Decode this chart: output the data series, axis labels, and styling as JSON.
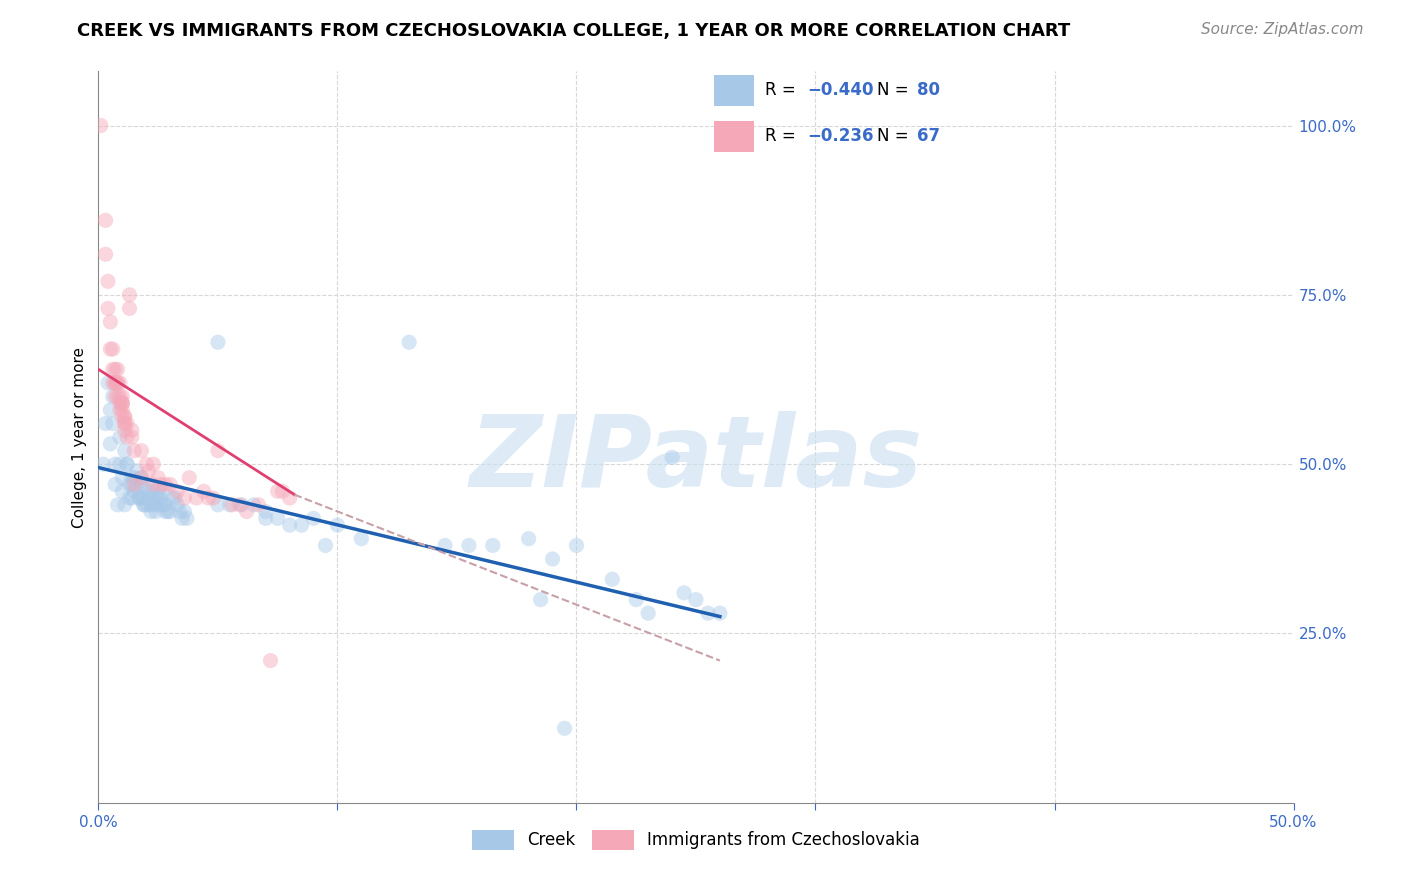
{
  "title": "CREEK VS IMMIGRANTS FROM CZECHOSLOVAKIA COLLEGE, 1 YEAR OR MORE CORRELATION CHART",
  "source": "Source: ZipAtlas.com",
  "ylabel": "College, 1 year or more",
  "xlim": [
    0.0,
    0.5
  ],
  "ylim": [
    0.0,
    1.08
  ],
  "xtick_positions": [
    0.0,
    0.1,
    0.2,
    0.3,
    0.4,
    0.5
  ],
  "xtick_labels": [
    "0.0%",
    "",
    "",
    "",
    "",
    "50.0%"
  ],
  "yticks_right": [
    0.25,
    0.5,
    0.75,
    1.0
  ],
  "ytick_labels_right": [
    "25.0%",
    "50.0%",
    "75.0%",
    "100.0%"
  ],
  "blue_color": "#a8c8e8",
  "pink_color": "#f4a8b8",
  "blue_line_color": "#2060b0",
  "pink_line_color": "#e04070",
  "dashed_line_color": "#c8a0a8",
  "legend_label_blue": "Creek",
  "legend_label_pink": "Immigrants from Czechoslovakia",
  "watermark": "ZIPatlas",
  "blue_scatter": [
    [
      0.002,
      0.5
    ],
    [
      0.003,
      0.56
    ],
    [
      0.004,
      0.62
    ],
    [
      0.005,
      0.58
    ],
    [
      0.005,
      0.53
    ],
    [
      0.006,
      0.6
    ],
    [
      0.006,
      0.56
    ],
    [
      0.007,
      0.5
    ],
    [
      0.007,
      0.47
    ],
    [
      0.008,
      0.44
    ],
    [
      0.009,
      0.54
    ],
    [
      0.009,
      0.5
    ],
    [
      0.01,
      0.48
    ],
    [
      0.01,
      0.46
    ],
    [
      0.011,
      0.44
    ],
    [
      0.011,
      0.52
    ],
    [
      0.012,
      0.5
    ],
    [
      0.012,
      0.5
    ],
    [
      0.013,
      0.47
    ],
    [
      0.013,
      0.45
    ],
    [
      0.014,
      0.48
    ],
    [
      0.014,
      0.47
    ],
    [
      0.014,
      0.45
    ],
    [
      0.015,
      0.48
    ],
    [
      0.015,
      0.46
    ],
    [
      0.016,
      0.49
    ],
    [
      0.016,
      0.47
    ],
    [
      0.017,
      0.45
    ],
    [
      0.017,
      0.45
    ],
    [
      0.018,
      0.45
    ],
    [
      0.018,
      0.48
    ],
    [
      0.018,
      0.47
    ],
    [
      0.019,
      0.45
    ],
    [
      0.019,
      0.44
    ],
    [
      0.019,
      0.44
    ],
    [
      0.02,
      0.44
    ],
    [
      0.02,
      0.47
    ],
    [
      0.021,
      0.46
    ],
    [
      0.021,
      0.45
    ],
    [
      0.022,
      0.45
    ],
    [
      0.022,
      0.44
    ],
    [
      0.022,
      0.43
    ],
    [
      0.023,
      0.44
    ],
    [
      0.023,
      0.46
    ],
    [
      0.024,
      0.44
    ],
    [
      0.024,
      0.43
    ],
    [
      0.025,
      0.46
    ],
    [
      0.025,
      0.45
    ],
    [
      0.026,
      0.45
    ],
    [
      0.026,
      0.44
    ],
    [
      0.027,
      0.46
    ],
    [
      0.027,
      0.44
    ],
    [
      0.028,
      0.43
    ],
    [
      0.028,
      0.44
    ],
    [
      0.029,
      0.43
    ],
    [
      0.03,
      0.43
    ],
    [
      0.031,
      0.45
    ],
    [
      0.032,
      0.45
    ],
    [
      0.033,
      0.44
    ],
    [
      0.034,
      0.43
    ],
    [
      0.035,
      0.42
    ],
    [
      0.036,
      0.43
    ],
    [
      0.037,
      0.42
    ],
    [
      0.05,
      0.68
    ],
    [
      0.05,
      0.44
    ],
    [
      0.055,
      0.44
    ],
    [
      0.06,
      0.44
    ],
    [
      0.065,
      0.44
    ],
    [
      0.07,
      0.43
    ],
    [
      0.07,
      0.42
    ],
    [
      0.075,
      0.42
    ],
    [
      0.08,
      0.41
    ],
    [
      0.085,
      0.41
    ],
    [
      0.09,
      0.42
    ],
    [
      0.095,
      0.38
    ],
    [
      0.1,
      0.41
    ],
    [
      0.11,
      0.39
    ],
    [
      0.13,
      0.68
    ],
    [
      0.145,
      0.38
    ],
    [
      0.155,
      0.38
    ],
    [
      0.165,
      0.38
    ],
    [
      0.18,
      0.39
    ],
    [
      0.185,
      0.3
    ],
    [
      0.19,
      0.36
    ],
    [
      0.195,
      0.11
    ],
    [
      0.2,
      0.38
    ],
    [
      0.215,
      0.33
    ],
    [
      0.225,
      0.3
    ],
    [
      0.23,
      0.28
    ],
    [
      0.24,
      0.51
    ],
    [
      0.245,
      0.31
    ],
    [
      0.25,
      0.3
    ],
    [
      0.255,
      0.28
    ],
    [
      0.26,
      0.28
    ]
  ],
  "pink_scatter": [
    [
      0.001,
      1.0
    ],
    [
      0.003,
      0.86
    ],
    [
      0.003,
      0.81
    ],
    [
      0.004,
      0.77
    ],
    [
      0.004,
      0.73
    ],
    [
      0.005,
      0.67
    ],
    [
      0.005,
      0.71
    ],
    [
      0.006,
      0.67
    ],
    [
      0.006,
      0.64
    ],
    [
      0.006,
      0.62
    ],
    [
      0.007,
      0.62
    ],
    [
      0.007,
      0.64
    ],
    [
      0.007,
      0.62
    ],
    [
      0.007,
      0.6
    ],
    [
      0.008,
      0.64
    ],
    [
      0.008,
      0.62
    ],
    [
      0.008,
      0.62
    ],
    [
      0.008,
      0.6
    ],
    [
      0.009,
      0.62
    ],
    [
      0.009,
      0.6
    ],
    [
      0.009,
      0.59
    ],
    [
      0.009,
      0.58
    ],
    [
      0.01,
      0.6
    ],
    [
      0.01,
      0.59
    ],
    [
      0.01,
      0.59
    ],
    [
      0.01,
      0.57
    ],
    [
      0.01,
      0.59
    ],
    [
      0.01,
      0.58
    ],
    [
      0.011,
      0.57
    ],
    [
      0.011,
      0.56
    ],
    [
      0.011,
      0.57
    ],
    [
      0.011,
      0.56
    ],
    [
      0.011,
      0.55
    ],
    [
      0.012,
      0.56
    ],
    [
      0.012,
      0.54
    ],
    [
      0.013,
      0.75
    ],
    [
      0.013,
      0.73
    ],
    [
      0.014,
      0.55
    ],
    [
      0.014,
      0.54
    ],
    [
      0.015,
      0.52
    ],
    [
      0.015,
      0.47
    ],
    [
      0.018,
      0.52
    ],
    [
      0.018,
      0.48
    ],
    [
      0.02,
      0.5
    ],
    [
      0.021,
      0.49
    ],
    [
      0.023,
      0.5
    ],
    [
      0.023,
      0.47
    ],
    [
      0.025,
      0.48
    ],
    [
      0.026,
      0.47
    ],
    [
      0.028,
      0.47
    ],
    [
      0.03,
      0.47
    ],
    [
      0.033,
      0.46
    ],
    [
      0.036,
      0.45
    ],
    [
      0.038,
      0.48
    ],
    [
      0.041,
      0.45
    ],
    [
      0.044,
      0.46
    ],
    [
      0.046,
      0.45
    ],
    [
      0.048,
      0.45
    ],
    [
      0.05,
      0.52
    ],
    [
      0.056,
      0.44
    ],
    [
      0.059,
      0.44
    ],
    [
      0.062,
      0.43
    ],
    [
      0.067,
      0.44
    ],
    [
      0.072,
      0.21
    ],
    [
      0.075,
      0.46
    ],
    [
      0.077,
      0.46
    ],
    [
      0.08,
      0.45
    ]
  ],
  "blue_trend_x": [
    0.0,
    0.26
  ],
  "blue_trend_y": [
    0.495,
    0.275
  ],
  "pink_trend_x": [
    0.0,
    0.082
  ],
  "pink_trend_y": [
    0.64,
    0.455
  ],
  "dashed_trend_x": [
    0.082,
    0.26
  ],
  "dashed_trend_y": [
    0.455,
    0.21
  ],
  "grid_color": "#d8d8d8",
  "title_fontsize": 13,
  "axis_fontsize": 11,
  "tick_fontsize": 11,
  "source_fontsize": 11,
  "right_tick_color": "#3a6bc8",
  "left_tick_color": "#3a6bc8",
  "scatter_size": 120,
  "scatter_alpha": 0.45,
  "legend_value_color": "#3a6bc8"
}
